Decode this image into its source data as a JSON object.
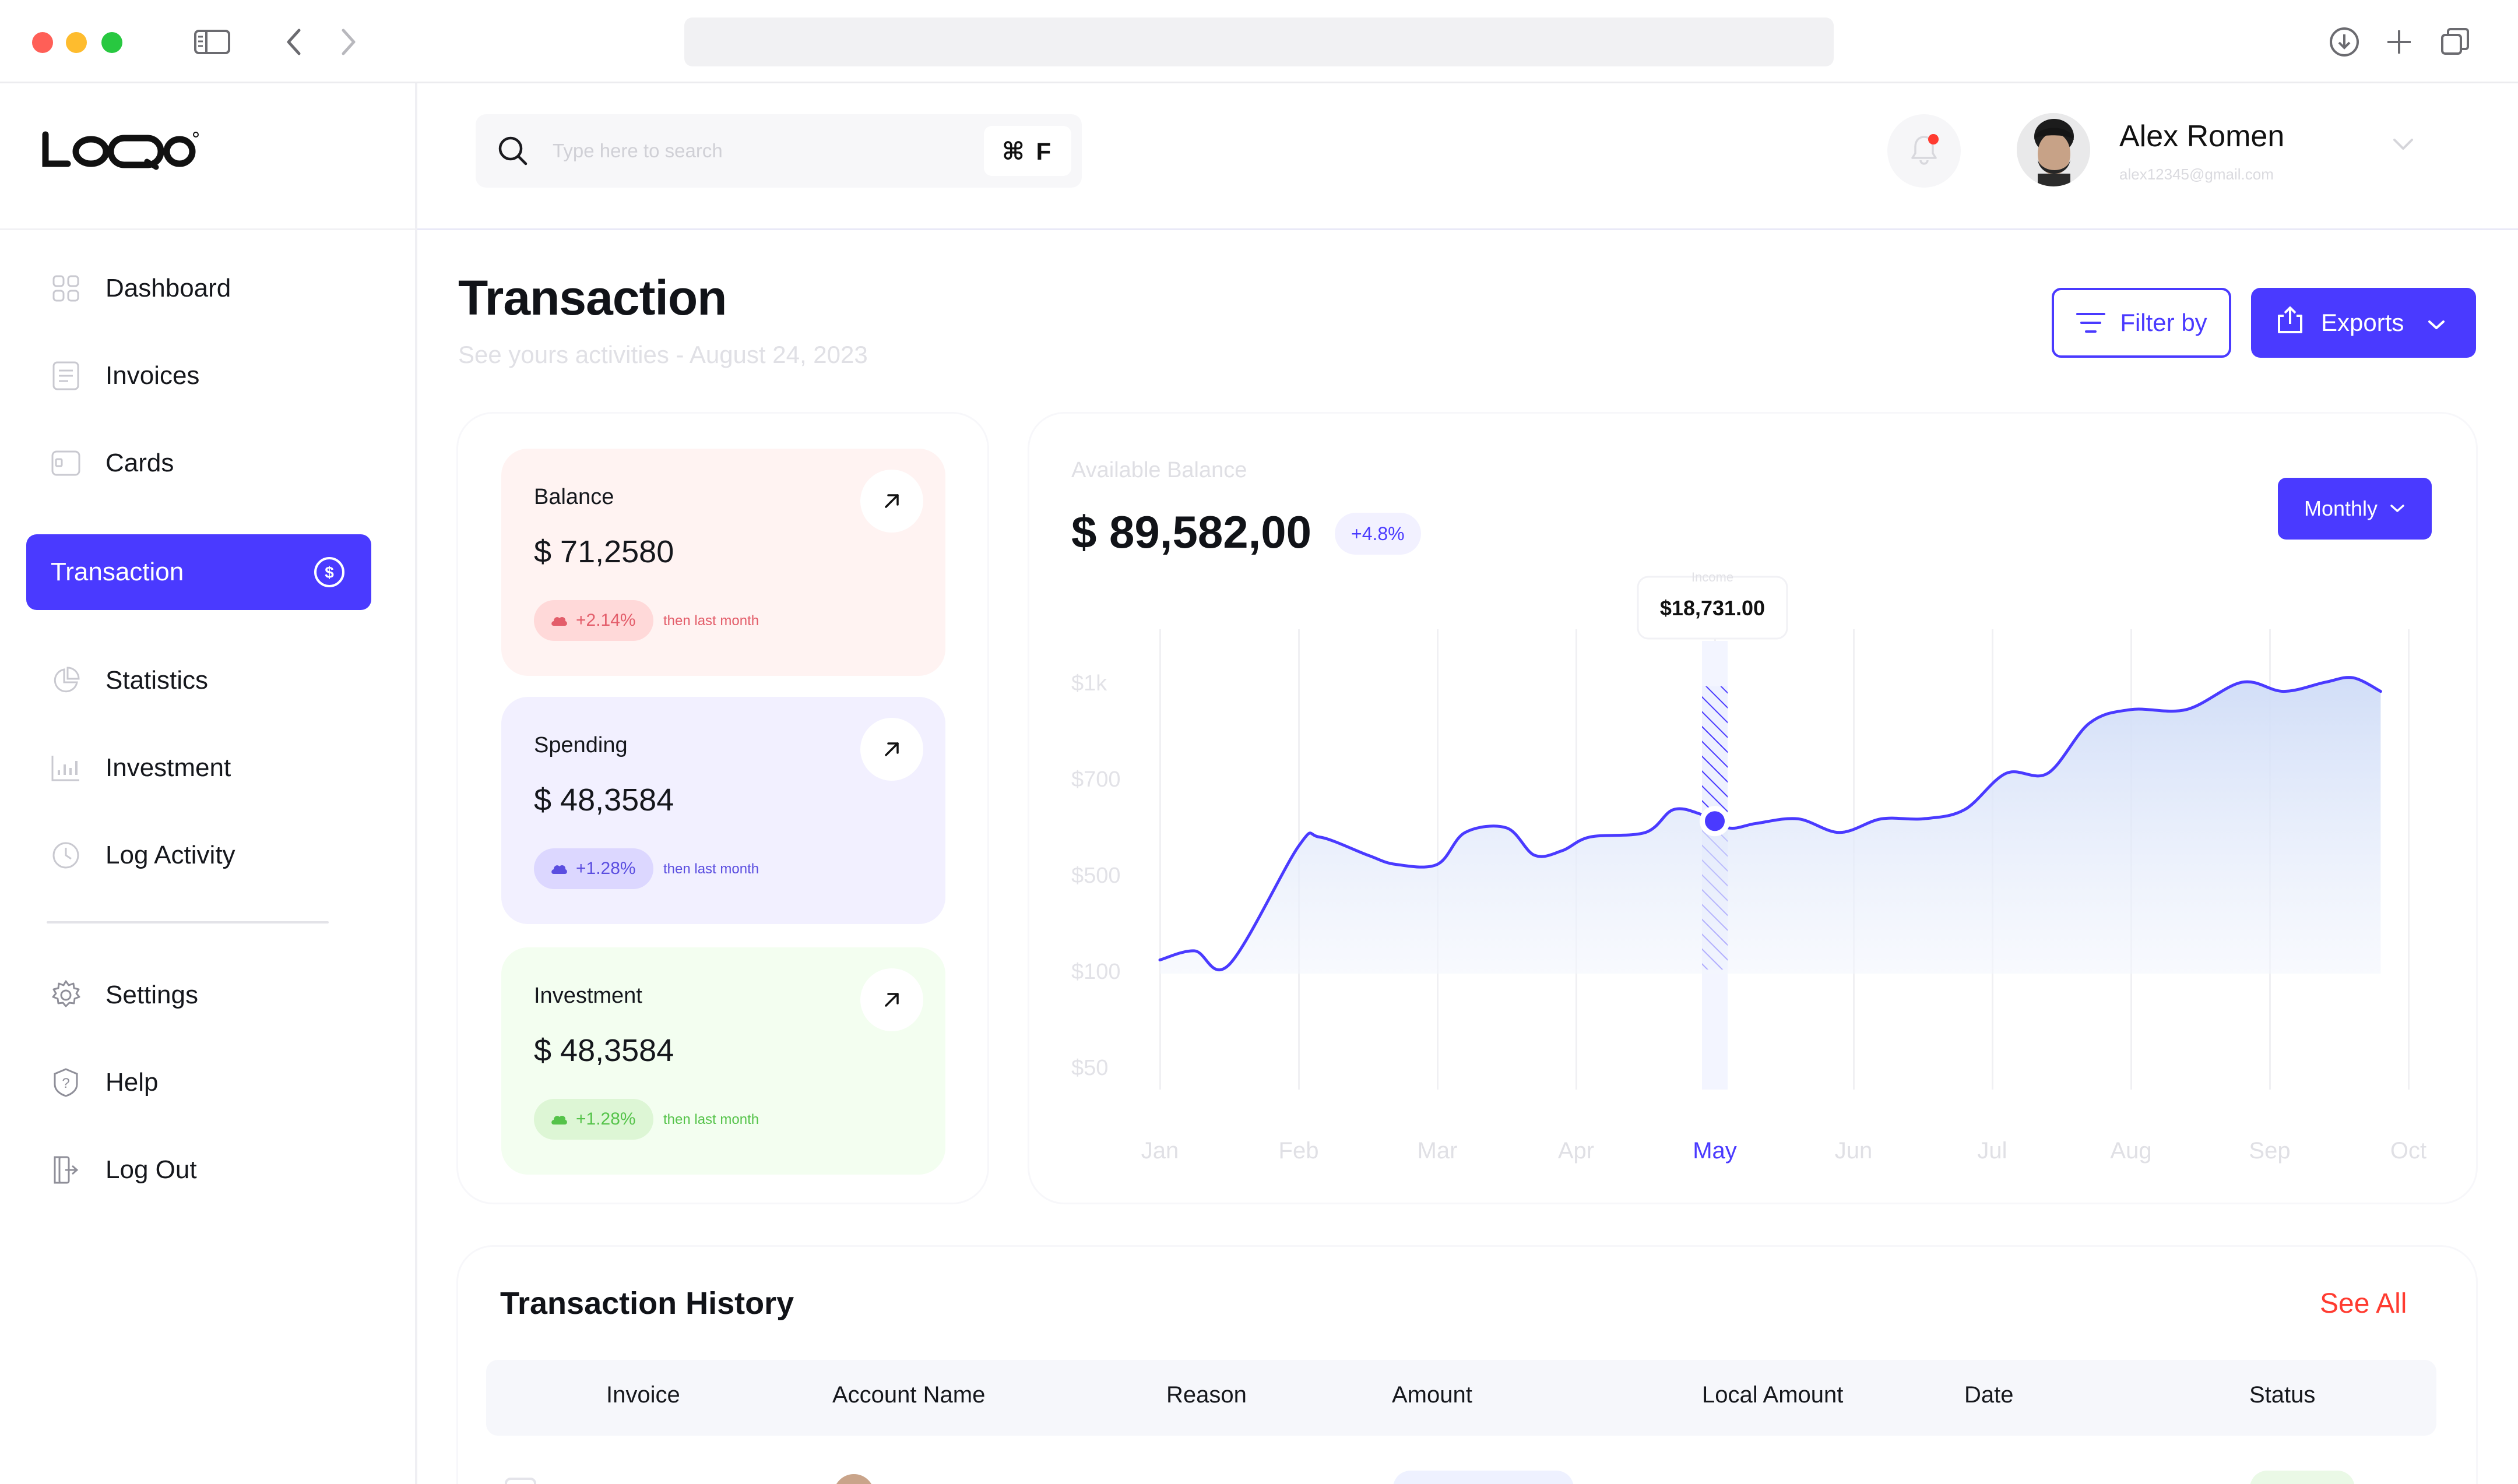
{
  "brand": {
    "logo_text": "LOQO"
  },
  "search": {
    "placeholder": "Type here to search",
    "shortcut": "⌘ F"
  },
  "user": {
    "name": "Alex Romen",
    "email": "alex12345@gmail.com"
  },
  "sidebar": {
    "items": [
      {
        "label": "Dashboard",
        "icon": "grid-icon"
      },
      {
        "label": "Invoices",
        "icon": "document-icon"
      },
      {
        "label": "Cards",
        "icon": "card-icon"
      },
      {
        "label": "Transaction",
        "icon": "dollar-circle-icon",
        "active": true
      },
      {
        "label": "Statistics",
        "icon": "pie-chart-icon"
      },
      {
        "label": "Investment",
        "icon": "bar-chart-icon"
      },
      {
        "label": "Log Activity",
        "icon": "clock-icon"
      }
    ],
    "bottom_items": [
      {
        "label": "Settings",
        "icon": "gear-icon"
      },
      {
        "label": "Help",
        "icon": "help-icon"
      },
      {
        "label": "Log Out",
        "icon": "logout-icon"
      }
    ]
  },
  "page": {
    "title": "Transaction",
    "subtitle": "See yours activities - August 24, 2023",
    "filter_label": "Filter by",
    "export_label": "Exports"
  },
  "cards": [
    {
      "title": "Balance",
      "value": "$ 71,2580",
      "change": "+2.14%",
      "note": "then last month"
    },
    {
      "title": "Spending",
      "value": "$ 48,3584",
      "change": "+1.28%",
      "note": "then last month"
    },
    {
      "title": "Investment",
      "value": "$ 48,3584",
      "change": "+1.28%",
      "note": "then last month"
    }
  ],
  "balance_chart": {
    "label": "Available Balance",
    "amount": "$ 89,582,00",
    "change": "+4.8%",
    "period": "Monthly",
    "tooltip": {
      "label": "Income",
      "value": "$18,731.00"
    }
  },
  "chart_data": {
    "type": "area",
    "x": [
      "Jan",
      "Feb",
      "Mar",
      "Apr",
      "May",
      "Jun",
      "Jul",
      "Aug",
      "Sep",
      "Oct"
    ],
    "y_ticks": [
      "$1k",
      "$700",
      "$500",
      "$100",
      "$50"
    ],
    "highlighted_x": "May",
    "series": [
      {
        "values": [
          [
            0.0,
            0.03
          ],
          [
            0.25,
            0.05
          ],
          [
            0.5,
            0.02
          ],
          [
            1.0,
            0.28
          ],
          [
            1.15,
            0.3
          ],
          [
            1.5,
            0.26
          ],
          [
            1.7,
            0.24
          ],
          [
            2.0,
            0.24
          ],
          [
            2.2,
            0.31
          ],
          [
            2.5,
            0.32
          ],
          [
            2.7,
            0.26
          ],
          [
            2.9,
            0.27
          ],
          [
            3.1,
            0.3
          ],
          [
            3.5,
            0.31
          ],
          [
            3.7,
            0.36
          ],
          [
            3.9,
            0.35
          ],
          [
            4.1,
            0.32
          ],
          [
            4.3,
            0.33
          ],
          [
            4.6,
            0.34
          ],
          [
            4.9,
            0.31
          ],
          [
            5.2,
            0.34
          ],
          [
            5.5,
            0.34
          ],
          [
            5.8,
            0.36
          ],
          [
            6.1,
            0.44
          ],
          [
            6.4,
            0.44
          ],
          [
            6.7,
            0.55
          ],
          [
            7.0,
            0.58
          ],
          [
            7.4,
            0.58
          ],
          [
            7.8,
            0.64
          ],
          [
            8.1,
            0.62
          ],
          [
            8.4,
            0.64
          ],
          [
            8.6,
            0.65
          ],
          [
            8.8,
            0.62
          ]
        ]
      }
    ],
    "colors": {
      "line": "#4a3aff",
      "fill": "#dfe8fb",
      "highlight": "#4a3aff"
    }
  },
  "history": {
    "title": "Transaction History",
    "see_all": "See All",
    "columns": [
      "Invoice",
      "Account Name",
      "Reason",
      "Amount",
      "Local Amount",
      "Date",
      "Status"
    ]
  },
  "theme": {
    "accent": "#4a3aff",
    "danger": "#ff3b30"
  }
}
